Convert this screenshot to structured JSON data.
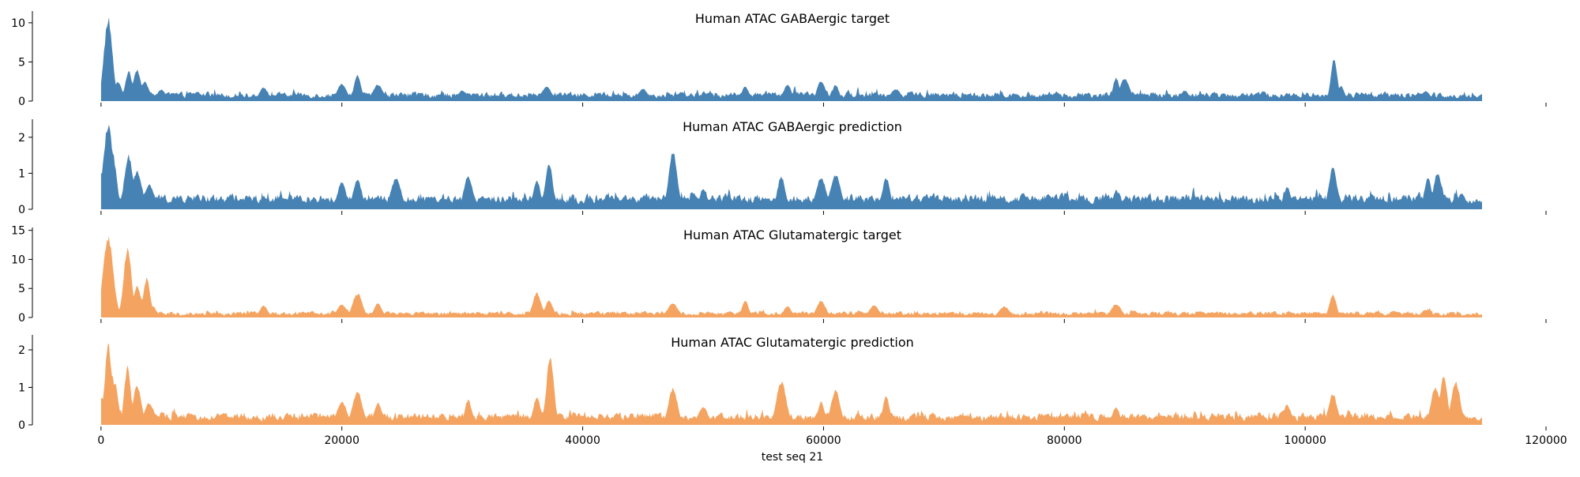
{
  "chart_data": {
    "type": "area",
    "xlabel": "test seq 21",
    "xlim": [
      -5700,
      120000
    ],
    "x_ticks": [
      0,
      20000,
      40000,
      60000,
      80000,
      100000,
      120000
    ],
    "x_tick_labels": [
      "0",
      "20000",
      "40000",
      "60000",
      "80000",
      "100000",
      "120000"
    ],
    "data_x_range": [
      0,
      114688
    ],
    "panels": [
      {
        "title": "Human ATAC GABAergic target",
        "color": "#4682b4",
        "ylim": [
          0,
          11.5
        ],
        "y_ticks": [
          0,
          5,
          10
        ],
        "y_tick_labels": [
          "0",
          "5",
          "10"
        ],
        "peaks": [
          [
            0,
            1.6
          ],
          [
            300,
            1.2
          ],
          [
            600,
            10.9
          ],
          [
            900,
            3.5
          ],
          [
            1400,
            2.6
          ],
          [
            2300,
            3.9
          ],
          [
            2800,
            2.9
          ],
          [
            3000,
            4.2
          ],
          [
            3600,
            2.5
          ],
          [
            5000,
            1.5
          ],
          [
            8000,
            1.2
          ],
          [
            13500,
            1.8
          ],
          [
            20000,
            2.3
          ],
          [
            21300,
            3.4
          ],
          [
            23000,
            2.2
          ],
          [
            30000,
            1.4
          ],
          [
            37000,
            1.9
          ],
          [
            45000,
            1.6
          ],
          [
            53500,
            1.9
          ],
          [
            57000,
            2.2
          ],
          [
            59800,
            2.7
          ],
          [
            61000,
            2.2
          ],
          [
            66000,
            1.6
          ],
          [
            84300,
            3.1
          ],
          [
            85000,
            3.0
          ],
          [
            90000,
            1.4
          ],
          [
            96000,
            1.1
          ],
          [
            102400,
            5.7
          ],
          [
            103000,
            2.0
          ],
          [
            110000,
            1.3
          ],
          [
            114688,
            0.9
          ]
        ],
        "baseline": 0.8,
        "noise": 0.55
      },
      {
        "title": "Human ATAC GABAergic prediction",
        "color": "#4682b4",
        "ylim": [
          0,
          2.5
        ],
        "y_ticks": [
          0,
          1,
          2
        ],
        "y_tick_labels": [
          "0",
          "1",
          "2"
        ],
        "peaks": [
          [
            0,
            1.05
          ],
          [
            200,
            0.9
          ],
          [
            600,
            2.4
          ],
          [
            800,
            1.9
          ],
          [
            1100,
            1.3
          ],
          [
            2300,
            1.55
          ],
          [
            3000,
            1.1
          ],
          [
            4000,
            0.7
          ],
          [
            20000,
            0.8
          ],
          [
            21300,
            0.85
          ],
          [
            24500,
            0.9
          ],
          [
            30500,
            0.95
          ],
          [
            36200,
            0.85
          ],
          [
            37200,
            1.35
          ],
          [
            47500,
            1.65
          ],
          [
            50000,
            0.6
          ],
          [
            56500,
            0.95
          ],
          [
            59800,
            0.9
          ],
          [
            61000,
            1.0
          ],
          [
            65200,
            0.9
          ],
          [
            84300,
            0.55
          ],
          [
            98500,
            0.65
          ],
          [
            102300,
            1.2
          ],
          [
            110200,
            0.95
          ],
          [
            111000,
            1.05
          ],
          [
            113000,
            0.45
          ],
          [
            114688,
            0.2
          ]
        ],
        "baseline": 0.3,
        "noise": 0.18
      },
      {
        "title": "Human ATAC Glutamatergic target",
        "color": "#f4a460",
        "ylim": [
          0,
          15.5
        ],
        "y_ticks": [
          0,
          5,
          10,
          15
        ],
        "y_tick_labels": [
          "0",
          "5",
          "10",
          "15"
        ],
        "peaks": [
          [
            0,
            0.9
          ],
          [
            600,
            14.3
          ],
          [
            800,
            5.5
          ],
          [
            1100,
            4.0
          ],
          [
            2200,
            12.3
          ],
          [
            3000,
            5.5
          ],
          [
            3800,
            7.0
          ],
          [
            4300,
            2.0
          ],
          [
            13500,
            2.1
          ],
          [
            20000,
            2.3
          ],
          [
            21300,
            4.3
          ],
          [
            23000,
            2.5
          ],
          [
            36200,
            4.4
          ],
          [
            37200,
            3.0
          ],
          [
            47500,
            2.5
          ],
          [
            53500,
            2.9
          ],
          [
            57000,
            2.0
          ],
          [
            59800,
            3.0
          ],
          [
            64200,
            2.2
          ],
          [
            75000,
            2.0
          ],
          [
            84300,
            2.4
          ],
          [
            102300,
            4.0
          ],
          [
            110000,
            1.4
          ],
          [
            114688,
            0.6
          ]
        ],
        "baseline": 0.7,
        "noise": 0.5
      },
      {
        "title": "Human ATAC Glutamatergic prediction",
        "color": "#f4a460",
        "ylim": [
          0,
          2.4
        ],
        "y_ticks": [
          0,
          1,
          2
        ],
        "y_tick_labels": [
          "0",
          "1",
          "2"
        ],
        "peaks": [
          [
            0,
            0.75
          ],
          [
            600,
            2.25
          ],
          [
            800,
            1.5
          ],
          [
            1100,
            1.2
          ],
          [
            2200,
            1.6
          ],
          [
            3000,
            1.1
          ],
          [
            4000,
            0.6
          ],
          [
            20000,
            0.65
          ],
          [
            21300,
            0.9
          ],
          [
            23000,
            0.6
          ],
          [
            30500,
            0.7
          ],
          [
            36200,
            0.75
          ],
          [
            37300,
            1.9
          ],
          [
            47500,
            1.0
          ],
          [
            50000,
            0.5
          ],
          [
            56500,
            1.2
          ],
          [
            59800,
            0.65
          ],
          [
            61000,
            0.95
          ],
          [
            65200,
            0.8
          ],
          [
            84300,
            0.5
          ],
          [
            98500,
            0.55
          ],
          [
            102300,
            0.85
          ],
          [
            110800,
            1.05
          ],
          [
            111500,
            1.4
          ],
          [
            112500,
            1.2
          ],
          [
            114688,
            0.15
          ]
        ],
        "baseline": 0.22,
        "noise": 0.15
      }
    ]
  }
}
